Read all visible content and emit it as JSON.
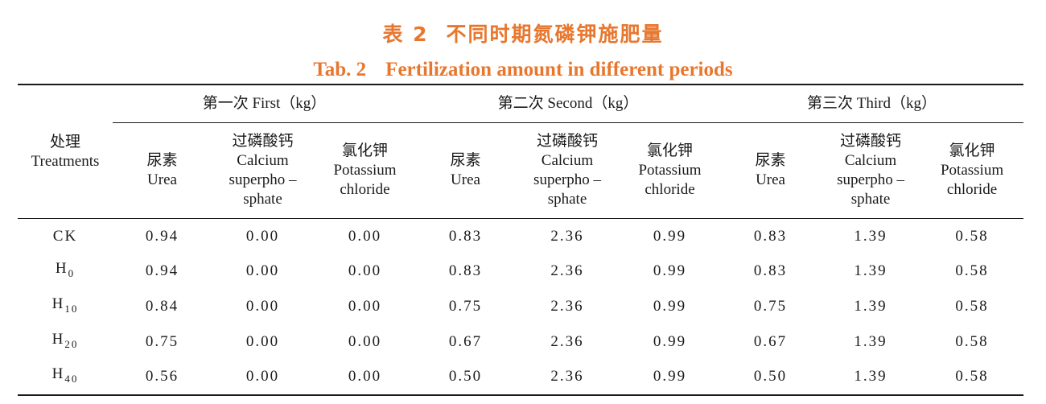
{
  "caption": {
    "cn_label": "表 2",
    "cn_title": "不同时期氮磷钾施肥量",
    "en_label": "Tab. 2",
    "en_title": "Fertilization amount in different periods"
  },
  "header": {
    "treatment": [
      "处理",
      "Treatments"
    ],
    "groups": [
      "第一次 First（kg）",
      "第二次 Second（kg）",
      "第三次 Third（kg）"
    ],
    "subcols": {
      "urea": [
        "尿素",
        "Urea"
      ],
      "calcium": [
        "过磷酸钙",
        "Calcium",
        "superpho –",
        "sphate"
      ],
      "potassium": [
        "氯化钾",
        "Potassium",
        "chloride"
      ]
    }
  },
  "rows": [
    {
      "base": "CK",
      "sub": "",
      "values": [
        "0.94",
        "0.00",
        "0.00",
        "0.83",
        "2.36",
        "0.99",
        "0.83",
        "1.39",
        "0.58"
      ]
    },
    {
      "base": "H",
      "sub": "0",
      "values": [
        "0.94",
        "0.00",
        "0.00",
        "0.83",
        "2.36",
        "0.99",
        "0.83",
        "1.39",
        "0.58"
      ]
    },
    {
      "base": "H",
      "sub": "10",
      "values": [
        "0.84",
        "0.00",
        "0.00",
        "0.75",
        "2.36",
        "0.99",
        "0.75",
        "1.39",
        "0.58"
      ]
    },
    {
      "base": "H",
      "sub": "20",
      "values": [
        "0.75",
        "0.00",
        "0.00",
        "0.67",
        "2.36",
        "0.99",
        "0.67",
        "1.39",
        "0.58"
      ]
    },
    {
      "base": "H",
      "sub": "40",
      "values": [
        "0.56",
        "0.00",
        "0.00",
        "0.50",
        "2.36",
        "0.99",
        "0.50",
        "1.39",
        "0.58"
      ]
    }
  ],
  "colors": {
    "caption": "#e8772e",
    "rule": "#1a1a1a"
  }
}
